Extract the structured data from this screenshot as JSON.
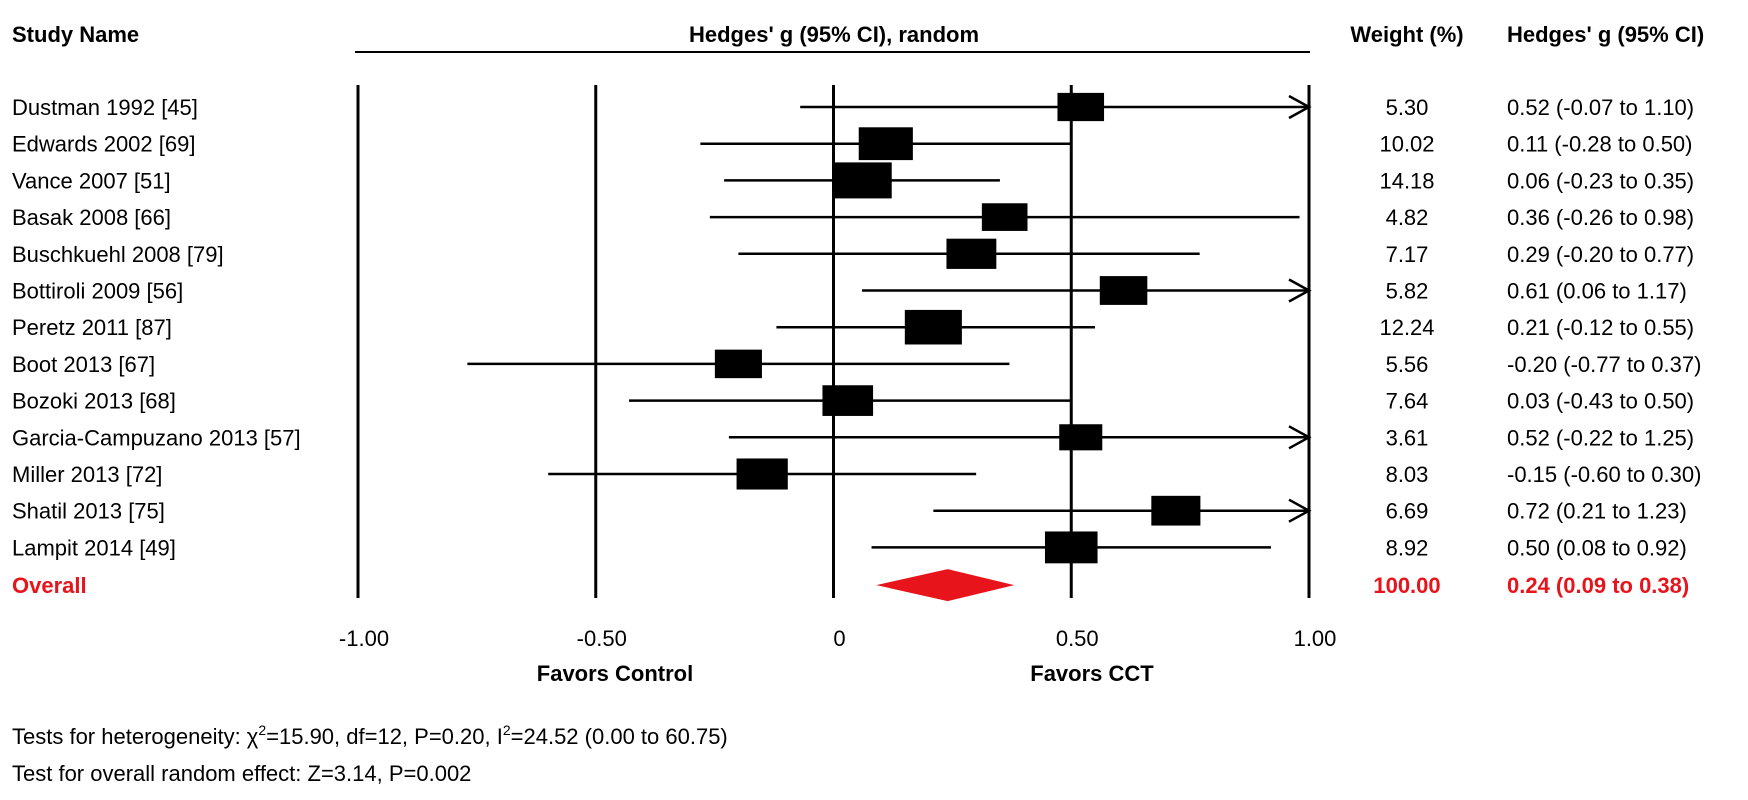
{
  "headers": {
    "study": "Study Name",
    "plot": "Hedges' g (95% CI), random",
    "weight": "Weight (%)",
    "effect": "Hedges' g (95% CI)"
  },
  "chart_data": {
    "type": "forest",
    "xlim": [
      -1.0,
      1.0
    ],
    "tick_labels": [
      "-1.00",
      "-0.50",
      "0",
      "0.50",
      "1.00"
    ],
    "tick_values": [
      -1.0,
      -0.5,
      0,
      0.5,
      1.0
    ],
    "xlabel_left": "Favors Control",
    "xlabel_right": "Favors CCT",
    "studies": [
      {
        "name": "Dustman 1992 [45]",
        "g": 0.52,
        "lo": -0.07,
        "hi": 1.1,
        "weight": "5.30",
        "ci_text": "0.52 (-0.07 to 1.10)"
      },
      {
        "name": "Edwards 2002 [69]",
        "g": 0.11,
        "lo": -0.28,
        "hi": 0.5,
        "weight": "10.02",
        "ci_text": "0.11 (-0.28 to 0.50)"
      },
      {
        "name": "Vance 2007 [51]",
        "g": 0.06,
        "lo": -0.23,
        "hi": 0.35,
        "weight": "14.18",
        "ci_text": "0.06 (-0.23 to 0.35)"
      },
      {
        "name": "Basak 2008 [66]",
        "g": 0.36,
        "lo": -0.26,
        "hi": 0.98,
        "weight": "4.82",
        "ci_text": "0.36 (-0.26 to 0.98)"
      },
      {
        "name": "Buschkuehl 2008 [79]",
        "g": 0.29,
        "lo": -0.2,
        "hi": 0.77,
        "weight": "7.17",
        "ci_text": "0.29 (-0.20 to 0.77)"
      },
      {
        "name": "Bottiroli 2009 [56]",
        "g": 0.61,
        "lo": 0.06,
        "hi": 1.17,
        "weight": "5.82",
        "ci_text": "0.61 (0.06 to 1.17)"
      },
      {
        "name": "Peretz 2011 [87]",
        "g": 0.21,
        "lo": -0.12,
        "hi": 0.55,
        "weight": "12.24",
        "ci_text": "0.21 (-0.12 to 0.55)"
      },
      {
        "name": "Boot 2013 [67]",
        "g": -0.2,
        "lo": -0.77,
        "hi": 0.37,
        "weight": "5.56",
        "ci_text": "-0.20 (-0.77 to 0.37)"
      },
      {
        "name": "Bozoki 2013 [68]",
        "g": 0.03,
        "lo": -0.43,
        "hi": 0.5,
        "weight": "7.64",
        "ci_text": "0.03 (-0.43 to 0.50)"
      },
      {
        "name": "Garcia-Campuzano 2013 [57]",
        "g": 0.52,
        "lo": -0.22,
        "hi": 1.25,
        "weight": "3.61",
        "ci_text": "0.52 (-0.22 to 1.25)"
      },
      {
        "name": "Miller 2013 [72]",
        "g": -0.15,
        "lo": -0.6,
        "hi": 0.3,
        "weight": "8.03",
        "ci_text": "-0.15 (-0.60 to 0.30)"
      },
      {
        "name": "Shatil 2013 [75]",
        "g": 0.72,
        "lo": 0.21,
        "hi": 1.23,
        "weight": "6.69",
        "ci_text": "0.72 (0.21 to 1.23)"
      },
      {
        "name": "Lampit 2014 [49]",
        "g": 0.5,
        "lo": 0.08,
        "hi": 0.92,
        "weight": "8.92",
        "ci_text": "0.50 (0.08 to 0.92)"
      }
    ],
    "overall": {
      "name": "Overall",
      "g": 0.24,
      "lo": 0.09,
      "hi": 0.38,
      "weight": "100.00",
      "ci_text": "0.24 (0.09 to 0.38)"
    },
    "colors": {
      "overall": "#e8141c",
      "marks": "#000000"
    }
  },
  "footer": {
    "heterogeneity_prefix": "Tests for heterogeneity: χ",
    "heterogeneity_sup1": "2",
    "heterogeneity_mid": "=15.90, df=12, P=0.20, I",
    "heterogeneity_sup2": "2",
    "heterogeneity_suffix": "=24.52 (0.00 to 60.75)",
    "overall_effect": "Test for overall random effect: Z=3.14, P=0.002"
  }
}
